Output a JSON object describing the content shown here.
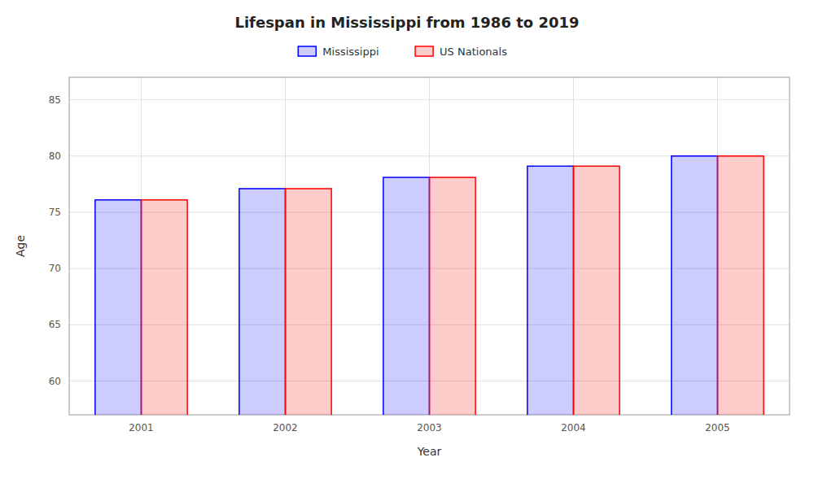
{
  "chart_data": {
    "type": "bar",
    "title": "Lifespan in Mississippi from 1986 to 2019",
    "xlabel": "Year",
    "ylabel": "Age",
    "categories": [
      "2001",
      "2002",
      "2003",
      "2004",
      "2005"
    ],
    "series": [
      {
        "name": "Mississippi",
        "color": "#0000ff",
        "values": [
          76.1,
          77.1,
          78.1,
          79.1,
          80.0
        ]
      },
      {
        "name": "US Nationals",
        "color": "#ff0000",
        "values": [
          76.1,
          77.1,
          78.1,
          79.1,
          80.0
        ]
      }
    ],
    "ylim": [
      57,
      87
    ],
    "yticks": [
      60,
      65,
      70,
      75,
      80,
      85
    ],
    "grid": true,
    "legend": "top"
  }
}
